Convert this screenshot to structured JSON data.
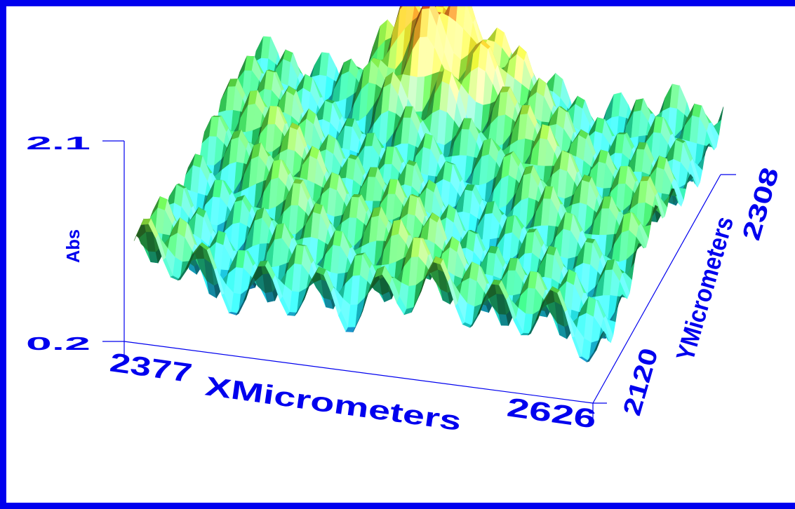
{
  "chart_data": {
    "type": "surface",
    "zlabel": "Abs",
    "xlabel": "XMicrometers",
    "ylabel": "YMicrometers",
    "xlim": [
      2377,
      2626
    ],
    "ylim": [
      2120,
      2308
    ],
    "zlim": [
      0.2,
      2.1
    ],
    "x_ticks": [
      "2377",
      "2626"
    ],
    "y_ticks": [
      "2120",
      "2308"
    ],
    "z_ticks": [
      "2.1",
      "0.2"
    ],
    "surface_pattern": {
      "description_free_params": true,
      "peaks_x": 8,
      "peaks_y": 7,
      "baseline": 0.75,
      "amplitude": 0.55,
      "max_value": 2.1
    }
  },
  "colors": {
    "frame": "#0000ee",
    "axis": "#0000ee",
    "colormap": [
      "#1e7fd8",
      "#18c8d8",
      "#20c060",
      "#58d040",
      "#e8e830",
      "#e88020",
      "#d83020"
    ]
  }
}
